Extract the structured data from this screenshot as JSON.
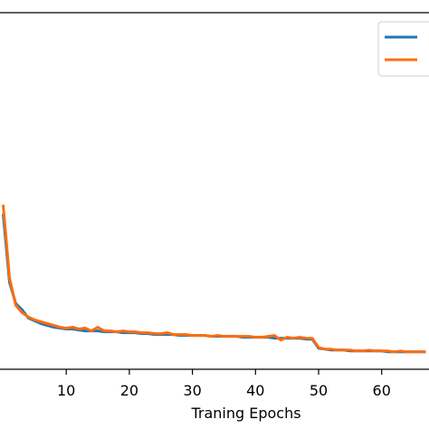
{
  "chart_data": {
    "type": "line",
    "title": "",
    "xlabel": "Traning Epochs",
    "ylabel": "",
    "xlim": [
      -0.5,
      67.5
    ],
    "ylim": [
      0.4,
      4.3
    ],
    "x_ticks": [
      10,
      20,
      30,
      40,
      50,
      60
    ],
    "x_tick_labels": [
      "10",
      "20",
      "30",
      "40",
      "50",
      "60"
    ],
    "grid": false,
    "legend": {
      "placement": "top-right",
      "entries": [
        "",
        ""
      ]
    },
    "series": [
      {
        "color": "#1f77b4",
        "x": [
          0,
          1,
          2,
          3,
          4,
          5,
          6,
          7,
          8,
          9,
          10,
          11,
          12,
          13,
          14,
          15,
          16,
          17,
          18,
          19,
          20,
          21,
          22,
          23,
          24,
          25,
          26,
          27,
          28,
          29,
          30,
          31,
          32,
          33,
          34,
          35,
          36,
          37,
          38,
          39,
          40,
          41,
          42,
          43,
          44,
          45,
          46,
          47,
          48,
          49,
          50,
          51,
          52,
          53,
          54,
          55,
          56,
          57,
          58,
          59,
          60,
          61,
          62,
          63,
          64,
          65,
          66,
          67
        ],
        "y": [
          2.1,
          1.35,
          1.12,
          1.05,
          0.96,
          0.93,
          0.9,
          0.88,
          0.86,
          0.85,
          0.84,
          0.84,
          0.83,
          0.82,
          0.82,
          0.82,
          0.81,
          0.81,
          0.81,
          0.8,
          0.8,
          0.8,
          0.79,
          0.79,
          0.78,
          0.78,
          0.78,
          0.78,
          0.77,
          0.77,
          0.77,
          0.77,
          0.77,
          0.76,
          0.76,
          0.76,
          0.76,
          0.76,
          0.75,
          0.75,
          0.75,
          0.75,
          0.75,
          0.74,
          0.74,
          0.74,
          0.74,
          0.74,
          0.73,
          0.73,
          0.63,
          0.62,
          0.61,
          0.61,
          0.61,
          0.6,
          0.6,
          0.6,
          0.6,
          0.6,
          0.6,
          0.59,
          0.59,
          0.59,
          0.59,
          0.59,
          0.59,
          0.59
        ]
      },
      {
        "color": "#ff6d10",
        "x": [
          0,
          1,
          2,
          3,
          4,
          5,
          6,
          7,
          8,
          9,
          10,
          11,
          12,
          13,
          14,
          15,
          16,
          17,
          18,
          19,
          20,
          21,
          22,
          23,
          24,
          25,
          26,
          27,
          28,
          29,
          30,
          31,
          32,
          33,
          34,
          35,
          36,
          37,
          38,
          39,
          40,
          41,
          42,
          43,
          44,
          45,
          46,
          47,
          48,
          49,
          50,
          51,
          52,
          53,
          54,
          55,
          56,
          57,
          58,
          59,
          60,
          61,
          62,
          63,
          64,
          65,
          66,
          67
        ],
        "y": [
          2.2,
          1.4,
          1.1,
          1.02,
          0.97,
          0.94,
          0.92,
          0.9,
          0.88,
          0.86,
          0.85,
          0.86,
          0.84,
          0.85,
          0.82,
          0.86,
          0.82,
          0.82,
          0.81,
          0.82,
          0.81,
          0.81,
          0.8,
          0.8,
          0.79,
          0.79,
          0.8,
          0.78,
          0.78,
          0.78,
          0.77,
          0.77,
          0.77,
          0.76,
          0.77,
          0.76,
          0.76,
          0.76,
          0.76,
          0.76,
          0.75,
          0.75,
          0.76,
          0.77,
          0.72,
          0.75,
          0.74,
          0.75,
          0.74,
          0.74,
          0.64,
          0.62,
          0.62,
          0.61,
          0.61,
          0.61,
          0.6,
          0.6,
          0.61,
          0.6,
          0.6,
          0.6,
          0.59,
          0.6,
          0.59,
          0.59,
          0.59,
          0.59
        ]
      }
    ]
  }
}
